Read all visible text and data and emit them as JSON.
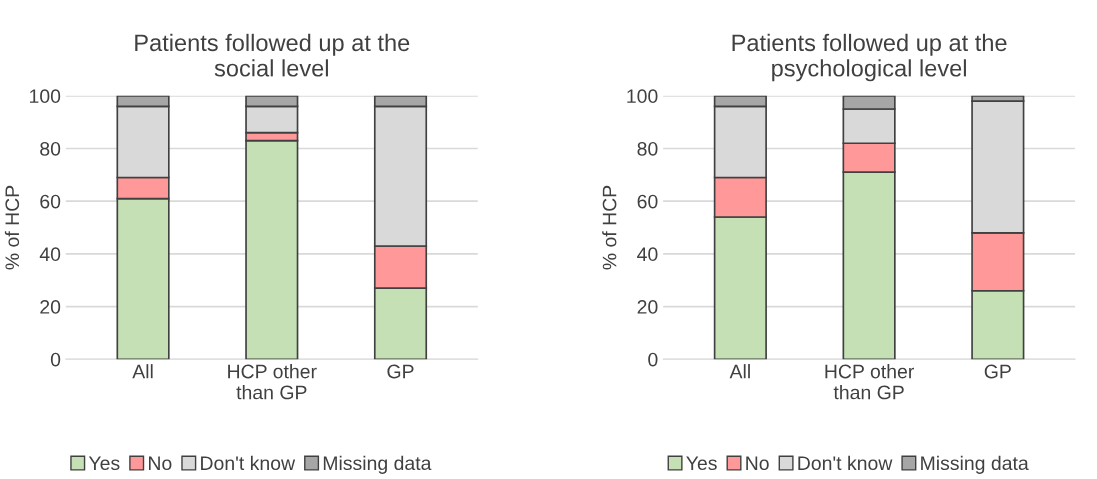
{
  "chart_data": [
    {
      "type": "bar",
      "title": "Patients followed up at the\nsocial level",
      "ylabel": "% of HCP",
      "categories": [
        "All",
        "HCP other\nthan GP",
        "GP"
      ],
      "stacked": true,
      "ylim": [
        0,
        100
      ],
      "yticks": [
        0,
        20,
        40,
        60,
        80,
        100
      ],
      "grid": "y",
      "legend": "bottom",
      "series": [
        {
          "name": "Yes",
          "color": "#c5e0b4",
          "values": [
            61,
            83,
            27
          ]
        },
        {
          "name": "No",
          "color": "#ff9999",
          "values": [
            8,
            3,
            16
          ]
        },
        {
          "name": "Don't know",
          "color": "#d9d9d9",
          "values": [
            27,
            10,
            53
          ]
        },
        {
          "name": "Missing data",
          "color": "#a6a6a6",
          "values": [
            4,
            4,
            4
          ]
        }
      ]
    },
    {
      "type": "bar",
      "title": "Patients followed up at the\npsychological level",
      "ylabel": "% of HCP",
      "categories": [
        "All",
        "HCP other\nthan GP",
        "GP"
      ],
      "stacked": true,
      "ylim": [
        0,
        100
      ],
      "yticks": [
        0,
        20,
        40,
        60,
        80,
        100
      ],
      "grid": "y",
      "legend": "bottom",
      "series": [
        {
          "name": "Yes",
          "color": "#c5e0b4",
          "values": [
            54,
            71,
            26
          ]
        },
        {
          "name": "No",
          "color": "#ff9999",
          "values": [
            15,
            11,
            22
          ]
        },
        {
          "name": "Don't know",
          "color": "#d9d9d9",
          "values": [
            27,
            13,
            50
          ]
        },
        {
          "name": "Missing data",
          "color": "#a6a6a6",
          "values": [
            4,
            5,
            2
          ]
        }
      ]
    }
  ]
}
